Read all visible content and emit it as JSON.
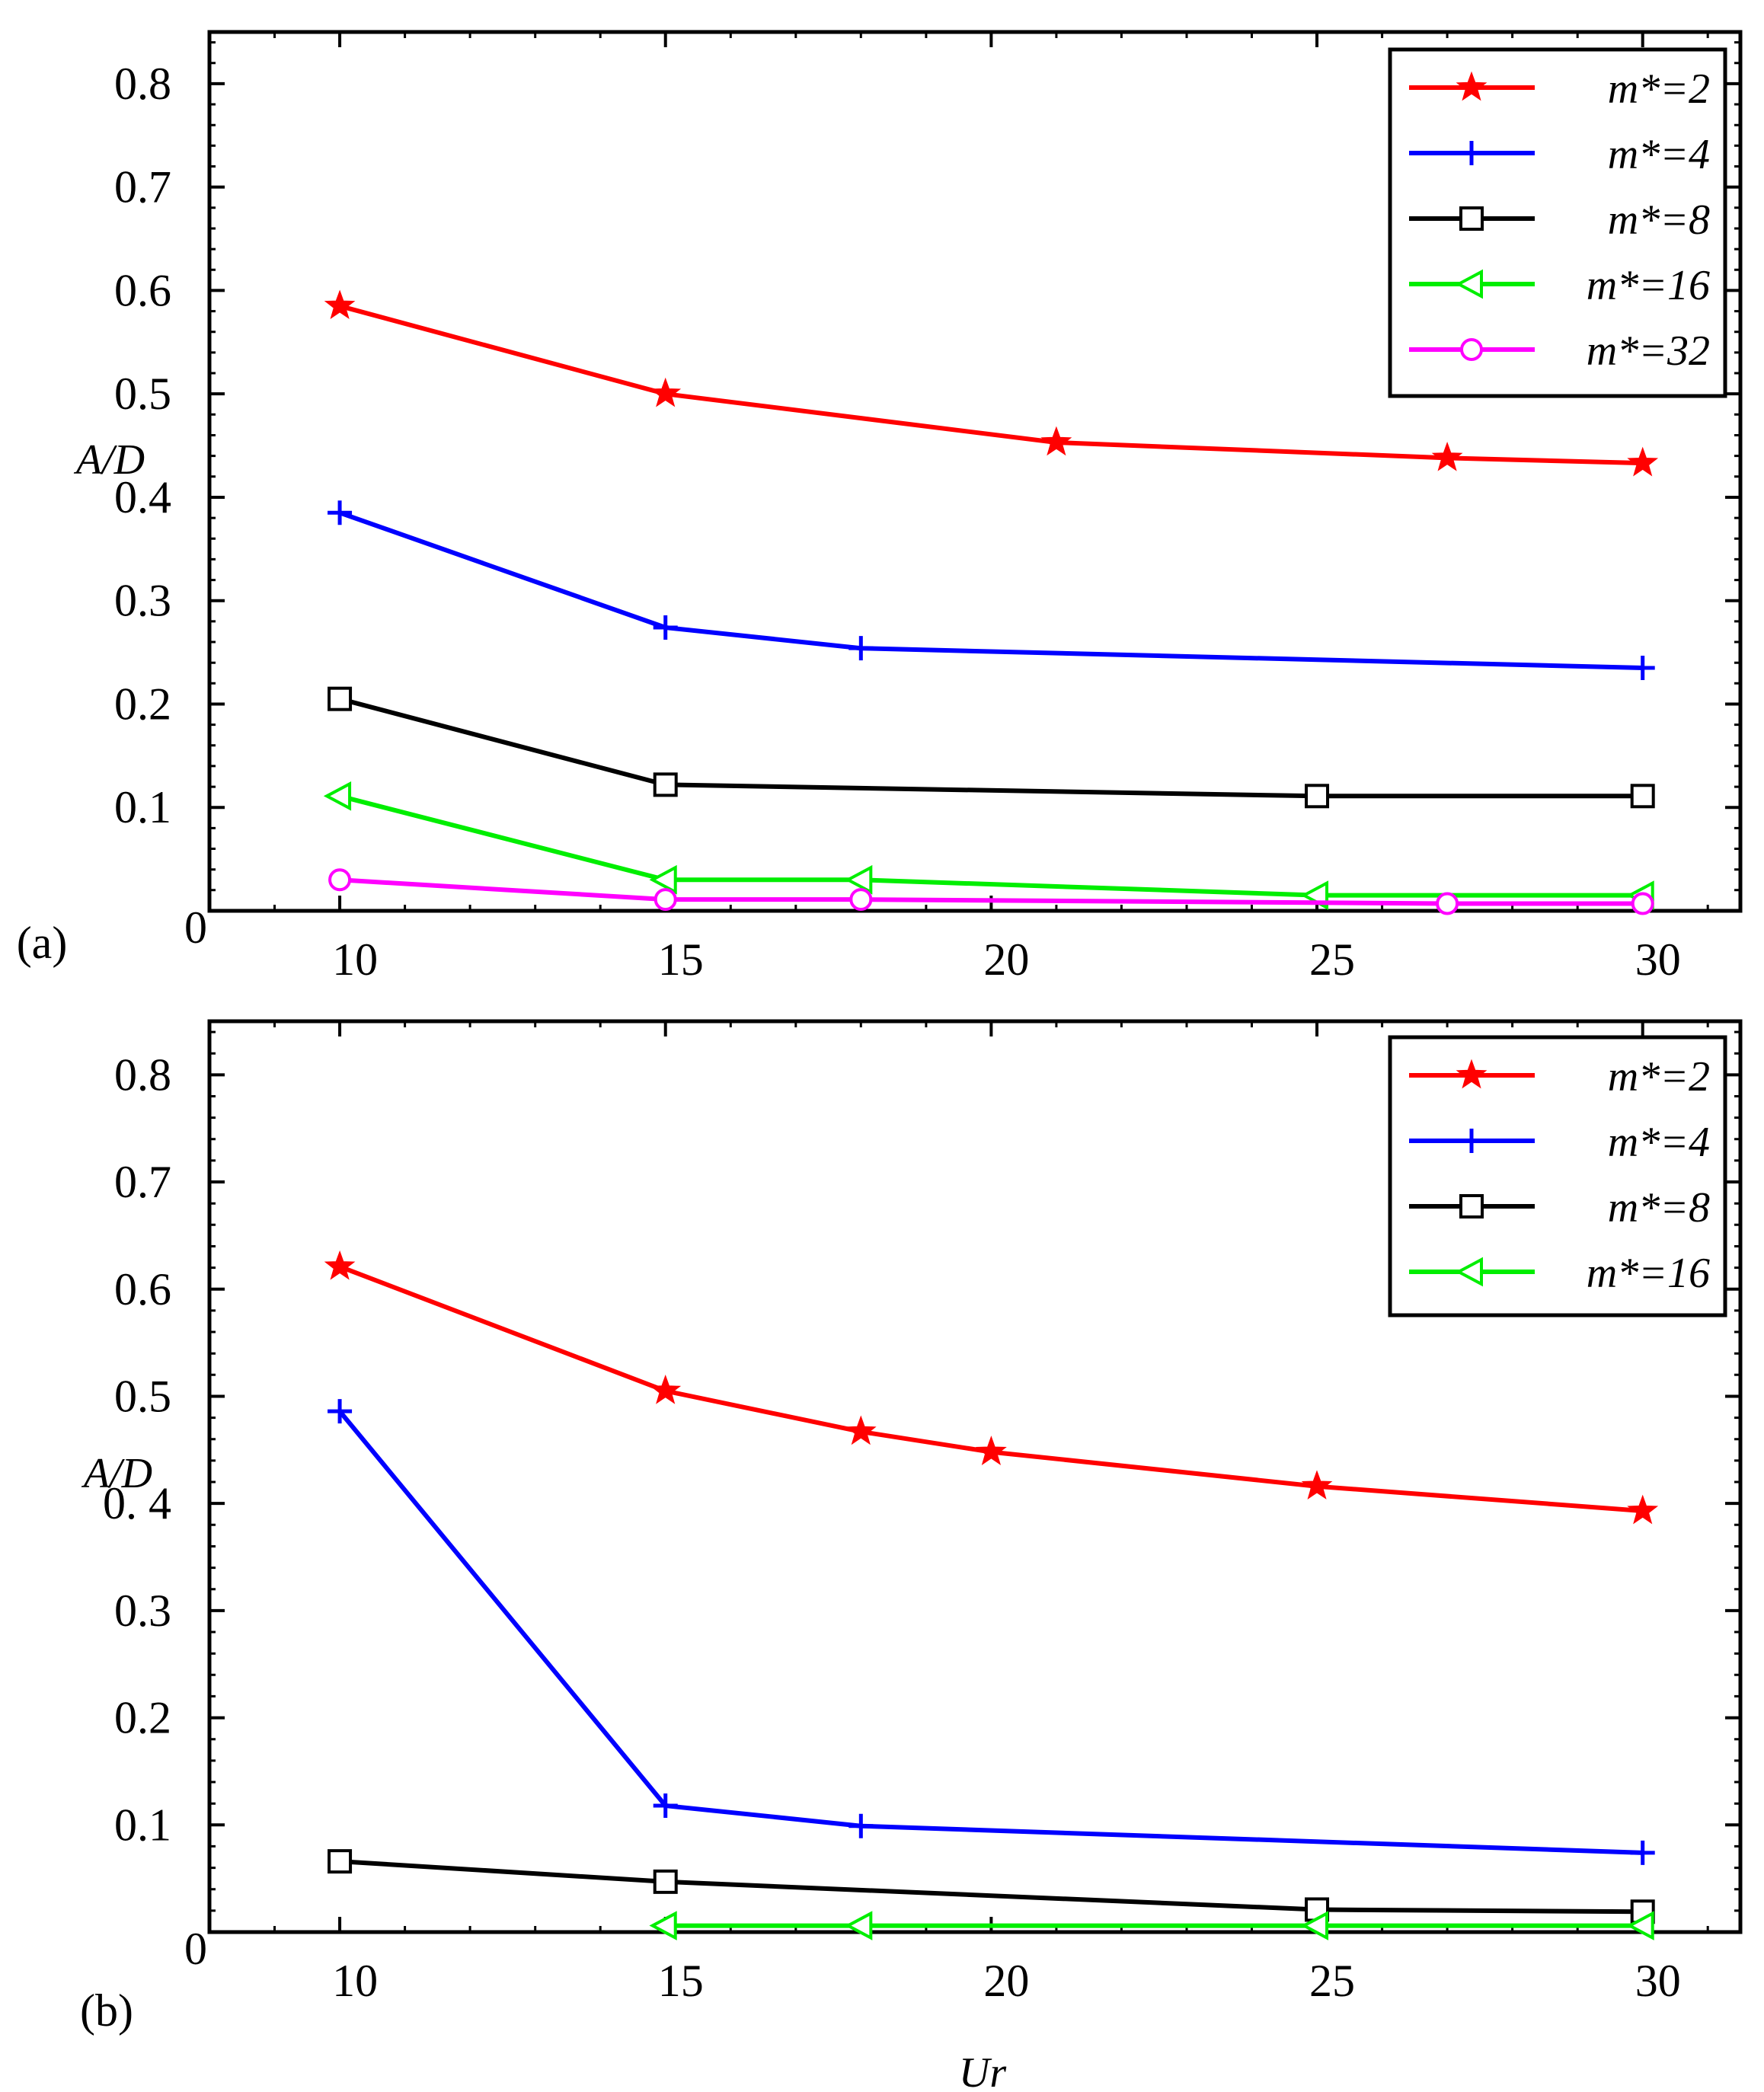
{
  "chart_data": [
    {
      "type": "line",
      "panel_label": "(a)",
      "xlabel": "",
      "ylabel": "A/D",
      "xlim": [
        8,
        31.5
      ],
      "ylim": [
        0,
        0.85
      ],
      "x_ticks": [
        10,
        15,
        20,
        25,
        30
      ],
      "x_tick_labels": [
        "10",
        "15",
        "20",
        "25",
        "30"
      ],
      "y_ticks": [
        0,
        0.1,
        0.2,
        0.3,
        0.4,
        0.5,
        0.6,
        0.7,
        0.8
      ],
      "y_tick_labels": [
        "0",
        "0.1",
        "0.2",
        "0.3",
        "0.4",
        "0.5",
        "0.6",
        "0.7",
        "0.8"
      ],
      "legend_position": "top-right",
      "series": [
        {
          "name": "m*=2",
          "color": "#ff0000",
          "marker": "star",
          "x": [
            10,
            15,
            21,
            27,
            30
          ],
          "y": [
            0.585,
            0.5,
            0.453,
            0.438,
            0.433
          ]
        },
        {
          "name": "m*=4",
          "color": "#0000ff",
          "marker": "plus",
          "x": [
            10,
            15,
            18,
            30
          ],
          "y": [
            0.385,
            0.274,
            0.254,
            0.235
          ]
        },
        {
          "name": "m*=8",
          "color": "#000000",
          "marker": "square",
          "x": [
            10,
            15,
            25,
            30
          ],
          "y": [
            0.205,
            0.122,
            0.111,
            0.111
          ]
        },
        {
          "name": "m*=16",
          "color": "#00ee00",
          "marker": "triangle-left",
          "x": [
            10,
            15,
            18,
            25,
            30
          ],
          "y": [
            0.111,
            0.03,
            0.03,
            0.015,
            0.015
          ]
        },
        {
          "name": "m*=32",
          "color": "#ff00ff",
          "marker": "circle",
          "x": [
            10,
            15,
            18,
            27,
            30
          ],
          "y": [
            0.03,
            0.011,
            0.011,
            0.007,
            0.007
          ]
        }
      ]
    },
    {
      "type": "line",
      "panel_label": "(b)",
      "xlabel": "Ur",
      "ylabel": "A/D",
      "xlim": [
        8,
        31.5
      ],
      "ylim": [
        0,
        0.85
      ],
      "x_ticks": [
        10,
        15,
        20,
        25,
        30
      ],
      "x_tick_labels": [
        "10",
        "15",
        "20",
        "25",
        "30"
      ],
      "y_ticks": [
        0,
        0.1,
        0.2,
        0.3,
        0.4,
        0.5,
        0.6,
        0.7,
        0.8
      ],
      "y_tick_labels": [
        "0",
        "0.1",
        "0.2",
        "0.3",
        "0. 4",
        "0.5",
        "0.6",
        "0.7",
        "0.8"
      ],
      "legend_position": "top-right",
      "series": [
        {
          "name": "m*=2",
          "color": "#ff0000",
          "marker": "star",
          "x": [
            10,
            15,
            18,
            20,
            25,
            30
          ],
          "y": [
            0.621,
            0.505,
            0.467,
            0.448,
            0.416,
            0.393
          ]
        },
        {
          "name": "m*=4",
          "color": "#0000ff",
          "marker": "plus",
          "x": [
            10,
            15,
            18,
            30
          ],
          "y": [
            0.486,
            0.118,
            0.099,
            0.074
          ]
        },
        {
          "name": "m*=8",
          "color": "#000000",
          "marker": "square",
          "x": [
            10,
            15,
            25,
            30
          ],
          "y": [
            0.066,
            0.047,
            0.021,
            0.019
          ]
        },
        {
          "name": "m*=16",
          "color": "#00ee00",
          "marker": "triangle-left",
          "x": [
            15,
            18,
            25,
            30
          ],
          "y": [
            0.006,
            0.006,
            0.006,
            0.006
          ]
        }
      ]
    }
  ]
}
